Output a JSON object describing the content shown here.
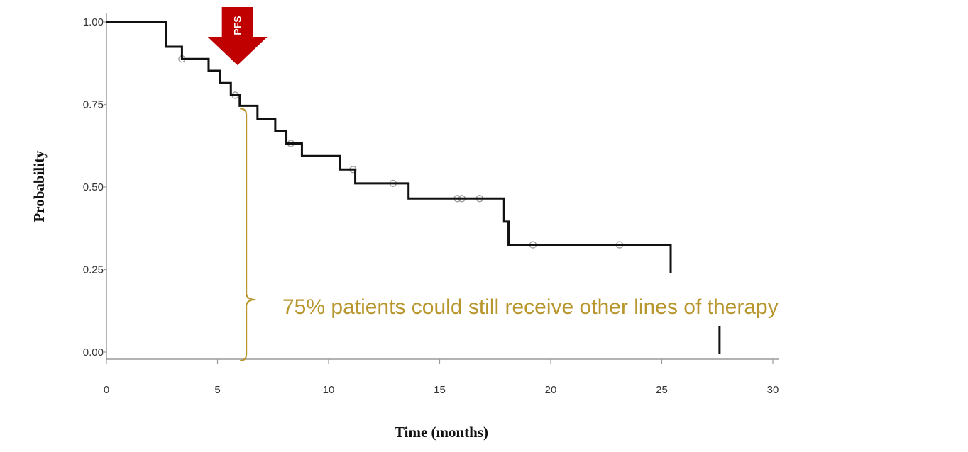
{
  "chart_data": {
    "type": "line",
    "title": "",
    "xlabel": "Time (months)",
    "ylabel": "Probability",
    "xlim": [
      0,
      30
    ],
    "ylim": [
      0,
      1
    ],
    "x_ticks": [
      "0",
      "5",
      "10",
      "15",
      "20",
      "25",
      "30"
    ],
    "y_ticks": [
      "0.00",
      "0.25",
      "0.50",
      "0.75",
      "1.00"
    ],
    "grid": false,
    "legend": "none",
    "series": [
      {
        "steps": [
          {
            "x": 0,
            "y": 1.0
          },
          {
            "x": 2.7,
            "y": 0.925
          },
          {
            "x": 3.4,
            "y": 0.888
          },
          {
            "x": 4.6,
            "y": 0.852
          },
          {
            "x": 5.1,
            "y": 0.815
          },
          {
            "x": 5.6,
            "y": 0.778
          },
          {
            "x": 6.0,
            "y": 0.746
          },
          {
            "x": 6.8,
            "y": 0.706
          },
          {
            "x": 7.6,
            "y": 0.669
          },
          {
            "x": 8.1,
            "y": 0.632
          },
          {
            "x": 8.8,
            "y": 0.594
          },
          {
            "x": 10.5,
            "y": 0.553
          },
          {
            "x": 11.2,
            "y": 0.511
          },
          {
            "x": 13.6,
            "y": 0.465
          },
          {
            "x": 17.9,
            "y": 0.395
          },
          {
            "x": 18.1,
            "y": 0.325
          },
          {
            "x": 25.4,
            "y": 0.22
          }
        ],
        "end_x": 25.4,
        "censored": [
          {
            "x": 3.4,
            "y": 0.888
          },
          {
            "x": 5.8,
            "y": 0.778
          },
          {
            "x": 8.3,
            "y": 0.632
          },
          {
            "x": 11.1,
            "y": 0.553
          },
          {
            "x": 12.9,
            "y": 0.511
          },
          {
            "x": 15.8,
            "y": 0.465
          },
          {
            "x": 16.0,
            "y": 0.465
          },
          {
            "x": 16.8,
            "y": 0.465
          },
          {
            "x": 19.2,
            "y": 0.325
          },
          {
            "x": 23.1,
            "y": 0.325
          }
        ],
        "tail_mark": {
          "x": 27.6,
          "y_from": 0.1,
          "y_to": 0.0
        },
        "color": "#111111"
      }
    ],
    "annotations": {
      "marker_label": "PFS",
      "marker_x": 5.9,
      "marker_color": "#c00000",
      "bracket_x": 6.3,
      "bracket_y_top": 0.746,
      "bracket_y_bottom": 0.0,
      "bracket_text": "75% patients could still receive other lines of therapy",
      "bracket_color": "#b8962e"
    }
  }
}
